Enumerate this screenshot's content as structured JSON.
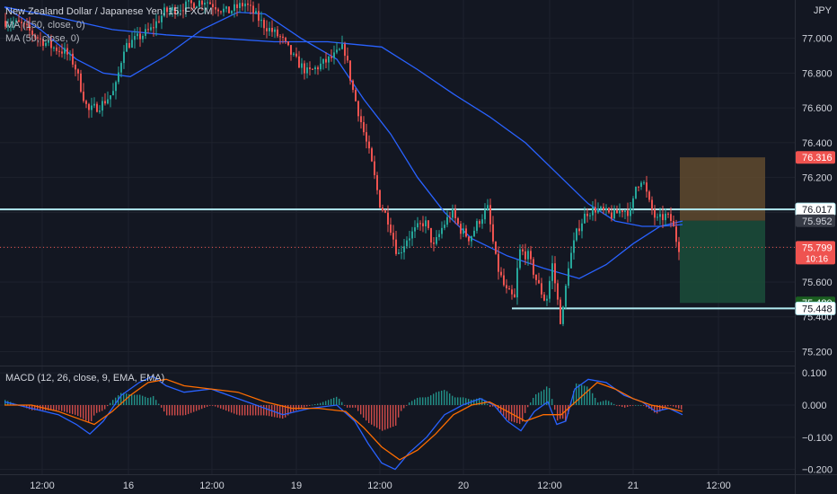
{
  "header": {
    "symbol_line": "New Zealand Dollar / Japanese Yen, 15, FXCM",
    "ma1_line": "MA (150, close, 0)",
    "ma2_line": "MA (50, close, 0)",
    "currency": "JPY"
  },
  "macd_legend": "MACD (12, 26, close, 9, EMA, EMA)",
  "colors": {
    "background": "#131722",
    "up": "#26a69a",
    "down": "#ef5350",
    "ma": "#2962ff",
    "macd_line": "#2962ff",
    "signal_line": "#ff6d00",
    "level_line": "#b2ebf2",
    "current_price_line": "#ef5350",
    "profit_zone": "#1b4d3a",
    "loss_zone": "#6b5230"
  },
  "chart_data": [
    {
      "type": "candlestick",
      "title": "New Zealand Dollar / Japanese Yen, 15, FXCM",
      "ylim": [
        75.12,
        77.22
      ],
      "y_ticks": [
        75.2,
        75.4,
        75.6,
        75.8,
        76.0,
        76.2,
        76.4,
        76.6,
        76.8,
        77.0
      ],
      "y_tick_labels": [
        "75.200",
        "75.400",
        "75.600",
        "75.800",
        "76.000",
        "76.200",
        "76.400",
        "76.600",
        "76.800",
        "77.000"
      ],
      "x_ticks": [
        "12:00",
        "16",
        "12:00",
        "19",
        "12:00",
        "20",
        "12:00",
        "21",
        "12:00"
      ],
      "price_path": [
        [
          0,
          77.1
        ],
        [
          20,
          77.08
        ],
        [
          40,
          77.0
        ],
        [
          55,
          76.95
        ],
        [
          70,
          76.92
        ],
        [
          80,
          76.85
        ],
        [
          88,
          76.7
        ],
        [
          95,
          76.58
        ],
        [
          110,
          76.62
        ],
        [
          125,
          76.7
        ],
        [
          135,
          76.95
        ],
        [
          150,
          77.0
        ],
        [
          165,
          77.05
        ],
        [
          180,
          77.15
        ],
        [
          200,
          77.18
        ],
        [
          225,
          77.22
        ],
        [
          250,
          77.15
        ],
        [
          270,
          77.2
        ],
        [
          290,
          77.08
        ],
        [
          310,
          77.0
        ],
        [
          325,
          76.88
        ],
        [
          340,
          76.8
        ],
        [
          355,
          76.85
        ],
        [
          370,
          76.9
        ],
        [
          380,
          76.95
        ],
        [
          390,
          76.7
        ],
        [
          400,
          76.5
        ],
        [
          410,
          76.3
        ],
        [
          420,
          76.05
        ],
        [
          430,
          75.95
        ],
        [
          440,
          75.75
        ],
        [
          450,
          75.85
        ],
        [
          460,
          75.9
        ],
        [
          470,
          75.95
        ],
        [
          480,
          75.8
        ],
        [
          490,
          75.92
        ],
        [
          500,
          76.0
        ],
        [
          510,
          75.9
        ],
        [
          520,
          75.85
        ],
        [
          530,
          75.95
        ],
        [
          540,
          76.02
        ],
        [
          550,
          75.7
        ],
        [
          560,
          75.55
        ],
        [
          570,
          75.5
        ],
        [
          575,
          75.78
        ],
        [
          585,
          75.75
        ],
        [
          595,
          75.6
        ],
        [
          605,
          75.48
        ],
        [
          612,
          75.7
        ],
        [
          622,
          75.35
        ],
        [
          630,
          75.7
        ],
        [
          640,
          75.9
        ],
        [
          650,
          76.0
        ],
        [
          660,
          76.02
        ],
        [
          670,
          76.0
        ],
        [
          680,
          75.98
        ],
        [
          690,
          76.02
        ],
        [
          700,
          76.0
        ],
        [
          705,
          76.15
        ],
        [
          712,
          76.2
        ],
        [
          720,
          76.05
        ],
        [
          728,
          75.95
        ],
        [
          738,
          75.98
        ],
        [
          745,
          75.95
        ],
        [
          752,
          75.8
        ]
      ],
      "overlays": [
        {
          "name": "MA (150, close, 0)",
          "points": [
            [
              0,
              77.18
            ],
            [
              60,
              77.12
            ],
            [
              120,
              77.05
            ],
            [
              180,
              77.02
            ],
            [
              240,
              77.0
            ],
            [
              300,
              76.98
            ],
            [
              360,
              76.98
            ],
            [
              420,
              76.95
            ],
            [
              460,
              76.82
            ],
            [
              500,
              76.68
            ],
            [
              540,
              76.55
            ],
            [
              580,
              76.4
            ],
            [
              620,
              76.2
            ],
            [
              650,
              76.05
            ],
            [
              680,
              75.95
            ],
            [
              710,
              75.92
            ],
            [
              730,
              75.92
            ],
            [
              755,
              75.93
            ]
          ]
        },
        {
          "name": "MA (50, close, 0)",
          "points": [
            [
              0,
              77.18
            ],
            [
              40,
              77.05
            ],
            [
              80,
              76.88
            ],
            [
              110,
              76.8
            ],
            [
              140,
              76.78
            ],
            [
              180,
              76.9
            ],
            [
              220,
              77.05
            ],
            [
              260,
              77.15
            ],
            [
              290,
              77.14
            ],
            [
              330,
              77.0
            ],
            [
              370,
              76.88
            ],
            [
              400,
              76.65
            ],
            [
              430,
              76.45
            ],
            [
              460,
              76.2
            ],
            [
              490,
              76.0
            ],
            [
              520,
              75.85
            ],
            [
              560,
              75.75
            ],
            [
              600,
              75.68
            ],
            [
              640,
              75.62
            ],
            [
              670,
              75.7
            ],
            [
              700,
              75.82
            ],
            [
              730,
              75.92
            ],
            [
              755,
              75.95
            ]
          ]
        }
      ],
      "horizontal_levels": [
        76.017,
        75.448
      ],
      "price_labels": [
        {
          "value": 76.316,
          "text": "76.316",
          "style": "red"
        },
        {
          "value": 76.017,
          "text": "76.017",
          "style": "light"
        },
        {
          "value": 75.952,
          "text": "75.952",
          "style": "gray"
        },
        {
          "value": 75.799,
          "text": "75.799",
          "sub": "10:16",
          "style": "red"
        },
        {
          "value": 75.48,
          "text": "75.480",
          "style": "green"
        },
        {
          "value": 75.448,
          "text": "75.448",
          "style": "light"
        }
      ],
      "current_price": 75.799,
      "position": {
        "entry": 75.952,
        "target": 75.48,
        "stop": 76.316
      }
    },
    {
      "type": "line",
      "title": "MACD (12, 26, close, 9, EMA, EMA)",
      "ylim": [
        -0.215,
        0.12
      ],
      "y_ticks": [
        0.1,
        0.0,
        -0.1,
        -0.2
      ],
      "y_tick_labels": [
        "0.100",
        "0.000",
        "−0.100",
        "−0.200"
      ],
      "series": [
        {
          "name": "MACD",
          "points": [
            [
              0,
              0.01
            ],
            [
              30,
              -0.01
            ],
            [
              60,
              -0.03
            ],
            [
              80,
              -0.06
            ],
            [
              95,
              -0.09
            ],
            [
              110,
              -0.05
            ],
            [
              130,
              0.03
            ],
            [
              150,
              0.07
            ],
            [
              165,
              0.09
            ],
            [
              180,
              0.06
            ],
            [
              200,
              0.04
            ],
            [
              230,
              0.05
            ],
            [
              250,
              0.03
            ],
            [
              280,
              0.0
            ],
            [
              310,
              -0.03
            ],
            [
              340,
              -0.01
            ],
            [
              370,
              0.0
            ],
            [
              390,
              -0.05
            ],
            [
              405,
              -0.12
            ],
            [
              420,
              -0.18
            ],
            [
              435,
              -0.2
            ],
            [
              450,
              -0.15
            ],
            [
              470,
              -0.1
            ],
            [
              490,
              -0.03
            ],
            [
              510,
              0.0
            ],
            [
              530,
              0.02
            ],
            [
              545,
              0.0
            ],
            [
              560,
              -0.05
            ],
            [
              575,
              -0.08
            ],
            [
              590,
              -0.02
            ],
            [
              605,
              0.01
            ],
            [
              615,
              -0.06
            ],
            [
              625,
              -0.05
            ],
            [
              635,
              0.05
            ],
            [
              650,
              0.08
            ],
            [
              670,
              0.07
            ],
            [
              690,
              0.03
            ],
            [
              710,
              0.01
            ],
            [
              725,
              -0.02
            ],
            [
              740,
              -0.01
            ],
            [
              755,
              -0.03
            ]
          ]
        },
        {
          "name": "Signal",
          "points": [
            [
              0,
              0.0
            ],
            [
              30,
              0.0
            ],
            [
              60,
              -0.02
            ],
            [
              80,
              -0.04
            ],
            [
              100,
              -0.06
            ],
            [
              120,
              -0.02
            ],
            [
              140,
              0.03
            ],
            [
              160,
              0.07
            ],
            [
              180,
              0.08
            ],
            [
              200,
              0.06
            ],
            [
              230,
              0.05
            ],
            [
              260,
              0.04
            ],
            [
              290,
              0.01
            ],
            [
              320,
              -0.01
            ],
            [
              350,
              -0.01
            ],
            [
              380,
              -0.02
            ],
            [
              400,
              -0.07
            ],
            [
              420,
              -0.13
            ],
            [
              440,
              -0.17
            ],
            [
              460,
              -0.14
            ],
            [
              480,
              -0.09
            ],
            [
              500,
              -0.03
            ],
            [
              520,
              0.0
            ],
            [
              540,
              0.01
            ],
            [
              560,
              -0.02
            ],
            [
              580,
              -0.05
            ],
            [
              600,
              -0.03
            ],
            [
              620,
              -0.03
            ],
            [
              640,
              0.02
            ],
            [
              660,
              0.07
            ],
            [
              680,
              0.05
            ],
            [
              700,
              0.02
            ],
            [
              720,
              0.0
            ],
            [
              740,
              -0.01
            ],
            [
              755,
              -0.02
            ]
          ]
        }
      ]
    }
  ]
}
